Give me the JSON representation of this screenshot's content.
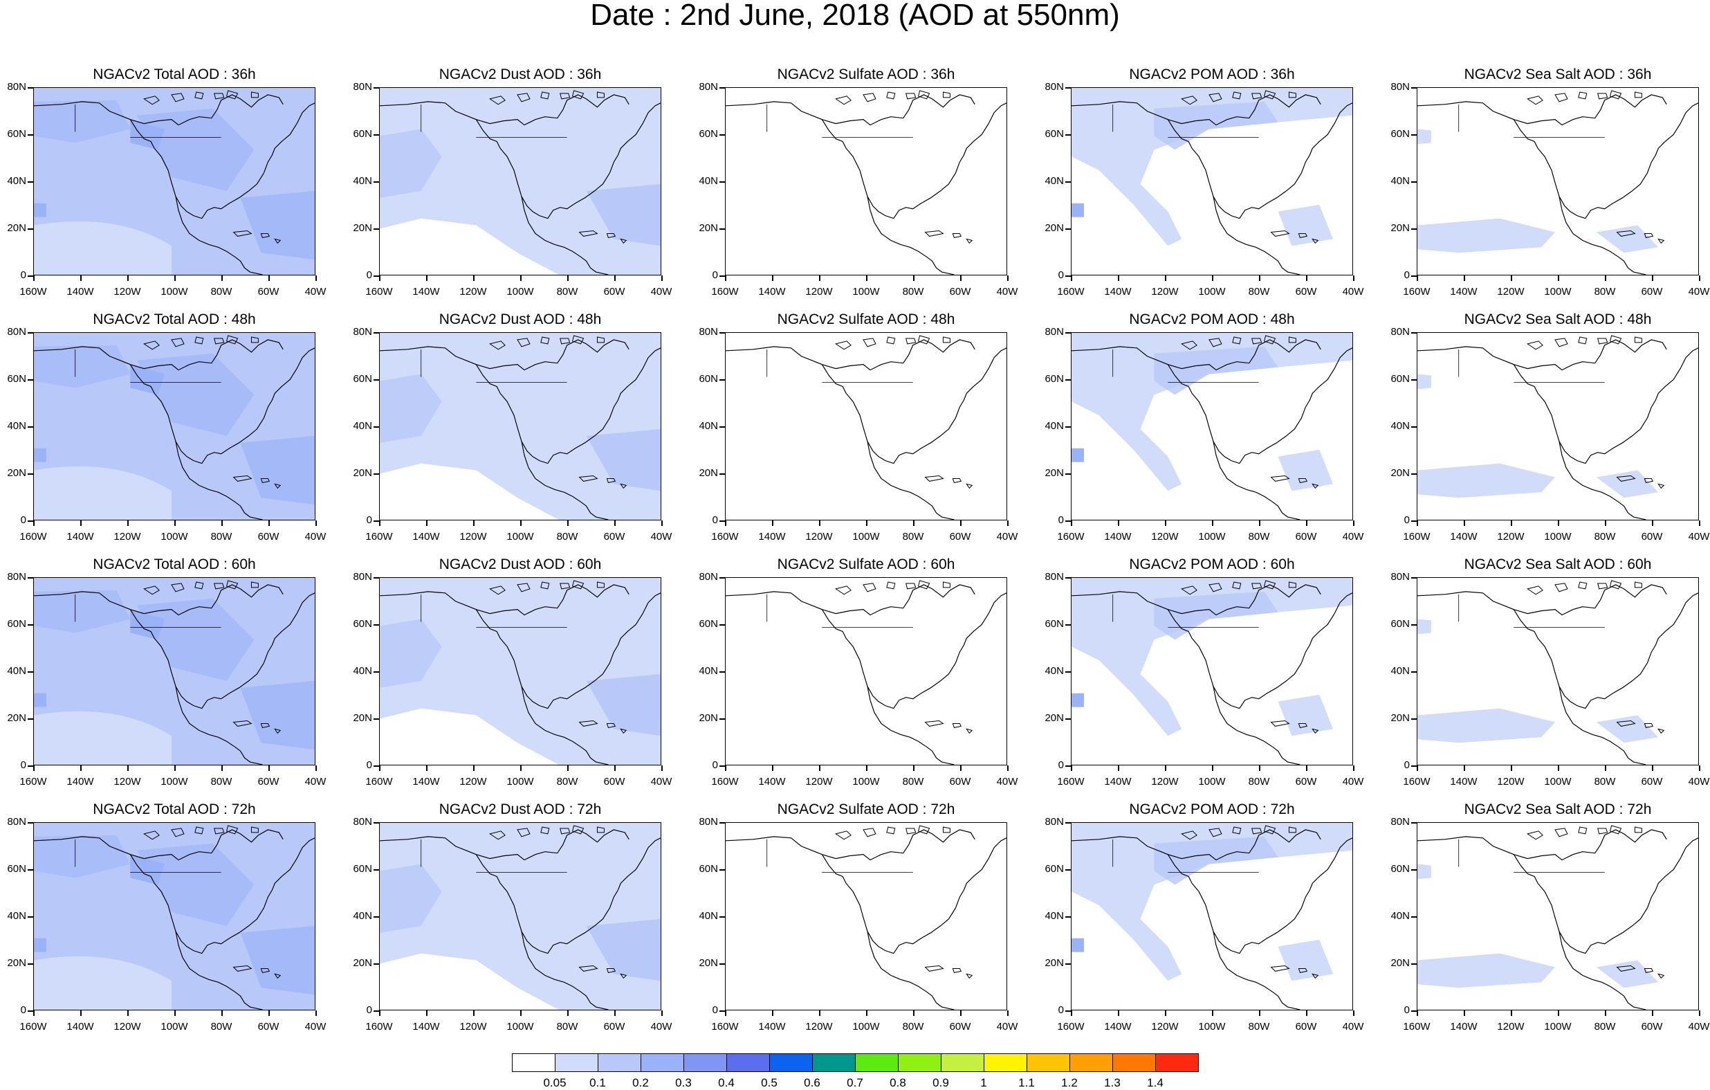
{
  "title": "Date : 2nd June, 2018 (AOD at 550nm)",
  "lat_labels": [
    "80N",
    "60N",
    "40N",
    "20N",
    "0"
  ],
  "lon_labels": [
    "160W",
    "140W",
    "120W",
    "100W",
    "80W",
    "60W",
    "40W"
  ],
  "panels": [
    [
      "NGACv2 Total AOD : 36h",
      "NGACv2 Dust AOD : 36h",
      "NGACv2 Sulfate AOD : 36h",
      "NGACv2 POM AOD : 36h",
      "NGACv2 Sea Salt AOD : 36h"
    ],
    [
      "NGACv2 Total AOD : 48h",
      "NGACv2 Dust AOD : 48h",
      "NGACv2 Sulfate AOD : 48h",
      "NGACv2 POM AOD : 48h",
      "NGACv2 Sea Salt AOD : 48h"
    ],
    [
      "NGACv2 Total AOD : 60h",
      "NGACv2 Dust AOD : 60h",
      "NGACv2 Sulfate AOD : 60h",
      "NGACv2 POM AOD : 60h",
      "NGACv2 Sea Salt AOD : 60h"
    ],
    [
      "NGACv2 Total AOD : 72h",
      "NGACv2 Dust AOD : 72h",
      "NGACv2 Sulfate AOD : 72h",
      "NGACv2 POM AOD : 72h",
      "NGACv2 Sea Salt  AOD : 72h"
    ]
  ],
  "colorbar": {
    "labels": [
      "0.05",
      "0.1",
      "0.2",
      "0.3",
      "0.4",
      "0.5",
      "0.6",
      "0.7",
      "0.8",
      "0.9",
      "1",
      "1.1",
      "1.2",
      "1.3",
      "1.4"
    ],
    "colors": [
      "#ffffff",
      "#d0dcfa",
      "#b8c8f8",
      "#9ab2f8",
      "#7f96f2",
      "#5b6ef0",
      "#0a64f0",
      "#00988c",
      "#5cea10",
      "#90f010",
      "#c6f040",
      "#fff400",
      "#ffc400",
      "#ffa000",
      "#ff7800",
      "#ff2a10"
    ]
  },
  "colors": {
    "level1": "#d0dcfa",
    "level2": "#b8c8f8",
    "level3": "#9ab2f8",
    "level4": "#7f96f2"
  },
  "chart_data": {
    "type": "heatmap",
    "title": "Date : 2nd June, 2018 (AOD at 550nm)",
    "rows": [
      "36h",
      "48h",
      "60h",
      "72h"
    ],
    "columns": [
      "Total AOD",
      "Dust AOD",
      "Sulfate AOD",
      "POM AOD",
      "Sea Salt AOD"
    ],
    "lon_range": [
      "160W",
      "40W"
    ],
    "lat_range": [
      "0",
      "80N"
    ],
    "levels": [
      0.05,
      0.1,
      0.2,
      0.3,
      0.4,
      0.5,
      0.6,
      0.7,
      0.8,
      0.9,
      1,
      1.1,
      1.2,
      1.3,
      1.4
    ],
    "overall_coverage_level_index": [
      [
        2,
        1,
        0,
        1,
        0
      ],
      [
        2,
        1,
        0,
        1,
        0
      ],
      [
        2,
        1,
        0,
        1,
        0
      ],
      [
        2,
        1,
        0,
        1,
        0
      ]
    ]
  }
}
